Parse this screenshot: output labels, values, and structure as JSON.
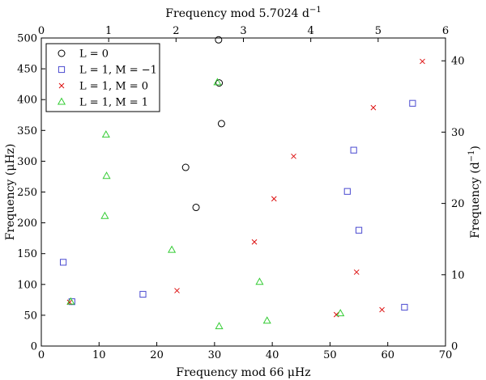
{
  "chart_data": {
    "type": "scatter",
    "title": "Frequency mod 5.7024 d⁻¹",
    "title_base": "Frequency mod 5.7024 d",
    "title_sup": "−1",
    "xlabel": "Frequency mod 66 μHz",
    "ylabel": "Frequency (μHz)",
    "ylabel_right_base": "Frequency (d",
    "ylabel_right_sup": "−1",
    "ylabel_right_close": ")",
    "xlim": [
      0,
      70
    ],
    "ylim": [
      0,
      500
    ],
    "xticks": [
      "0",
      "10",
      "20",
      "30",
      "40",
      "50",
      "60",
      "70"
    ],
    "yticks": [
      "0",
      "50",
      "100",
      "150",
      "200",
      "250",
      "300",
      "350",
      "400",
      "450",
      "500"
    ],
    "top_xlim": [
      0,
      6
    ],
    "top_xticks": [
      "0",
      "1",
      "2",
      "3",
      "4",
      "5",
      "6"
    ],
    "right_ylim": [
      0,
      43.2
    ],
    "right_yticks": [
      "0",
      "10",
      "20",
      "30",
      "40"
    ],
    "legend_position": "top-left",
    "series": [
      {
        "name": "L = 0",
        "marker": "circle",
        "color": "#000000",
        "points": [
          [
            30.7,
            497
          ],
          [
            30.8,
            427
          ],
          [
            31.2,
            361
          ],
          [
            25.0,
            290
          ],
          [
            26.8,
            225
          ]
        ]
      },
      {
        "name": "L = 1, M = −1",
        "marker": "square",
        "color": "#4a4ad0",
        "points": [
          [
            64.3,
            394
          ],
          [
            54.1,
            318
          ],
          [
            53.0,
            251
          ],
          [
            55.0,
            188
          ],
          [
            3.8,
            136
          ],
          [
            17.6,
            84
          ],
          [
            5.3,
            72
          ],
          [
            62.9,
            63
          ]
        ]
      },
      {
        "name": "L = 1, M = 0",
        "marker": "x",
        "color": "#dd1111",
        "points": [
          [
            66.0,
            462
          ],
          [
            57.5,
            387
          ],
          [
            43.7,
            308
          ],
          [
            40.3,
            239
          ],
          [
            36.9,
            169
          ],
          [
            23.5,
            90
          ],
          [
            4.9,
            71
          ],
          [
            54.6,
            120
          ],
          [
            59.0,
            59
          ],
          [
            51.1,
            51
          ]
        ]
      },
      {
        "name": "L = 1, M = 1",
        "marker": "triangle",
        "color": "#33cc33",
        "points": [
          [
            30.5,
            428
          ],
          [
            11.2,
            343
          ],
          [
            11.3,
            276
          ],
          [
            11.0,
            211
          ],
          [
            22.6,
            156
          ],
          [
            37.8,
            104
          ],
          [
            5.1,
            72
          ],
          [
            30.8,
            32
          ],
          [
            39.1,
            41
          ],
          [
            51.8,
            53
          ]
        ]
      }
    ]
  }
}
